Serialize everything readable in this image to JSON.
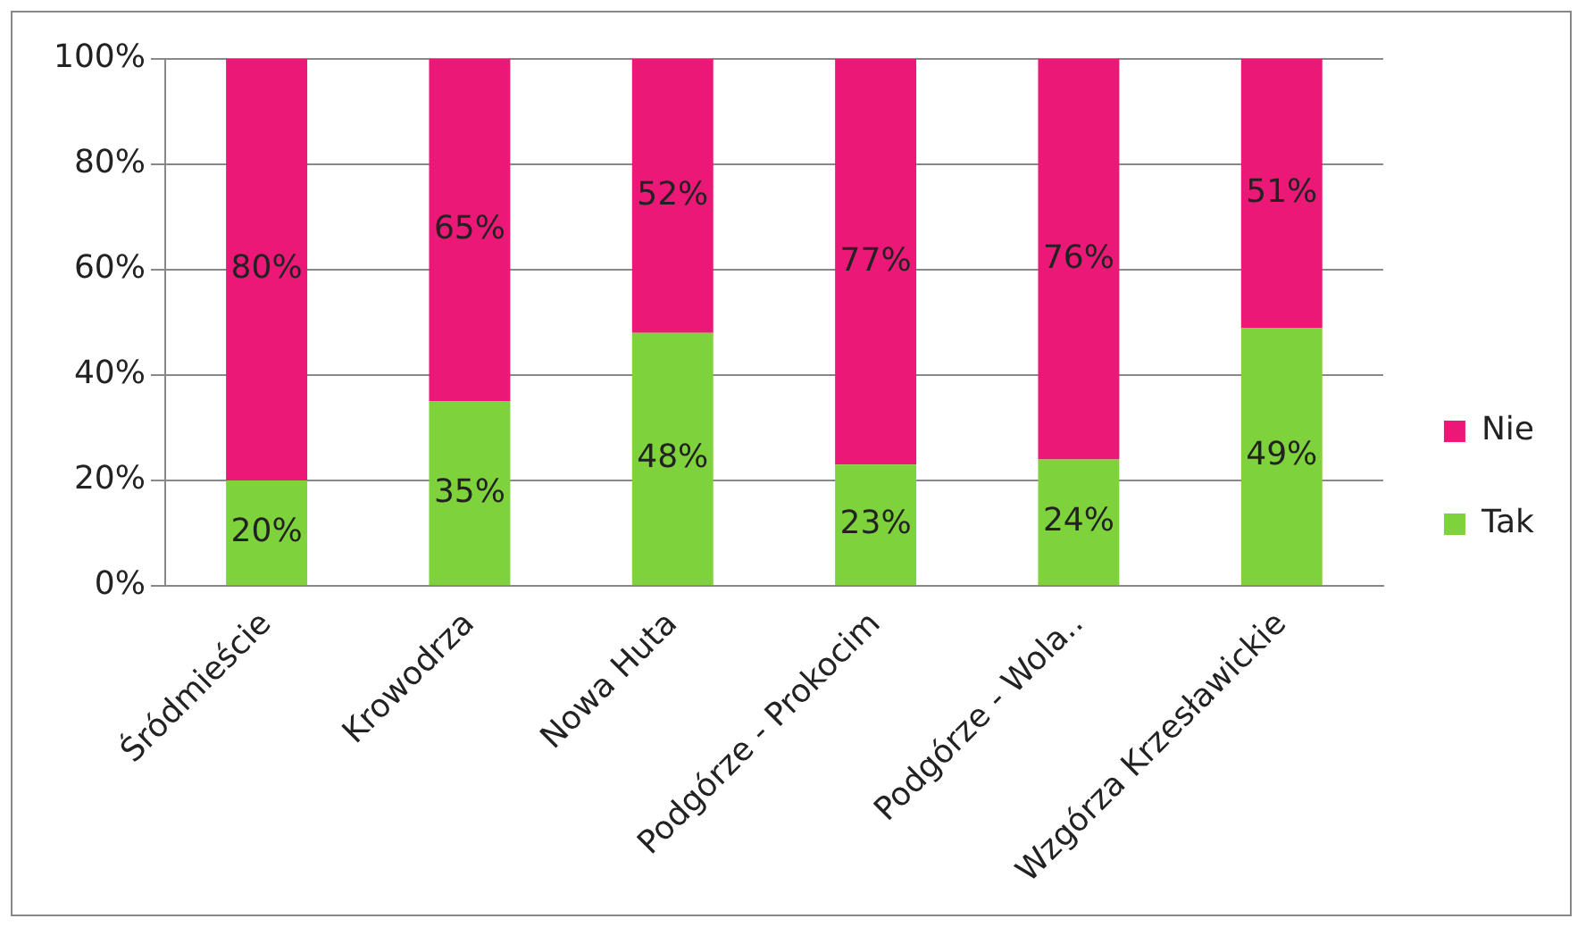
{
  "chart_data": {
    "type": "bar",
    "stacked": true,
    "categories": [
      "Śródmieście",
      "Krowodrza",
      "Nowa Huta",
      "Podgórze - Prokocim",
      "Podgórze - Wola..",
      "Wzgórza Krzesławickie"
    ],
    "series": [
      {
        "name": "Tak",
        "color": "#7ed23c",
        "values": [
          20,
          35,
          48,
          23,
          24,
          49
        ],
        "value_labels": [
          "20%",
          "35%",
          "48%",
          "23%",
          "24%",
          "49%"
        ]
      },
      {
        "name": "Nie",
        "color": "#ec1877",
        "values": [
          80,
          65,
          52,
          77,
          76,
          51
        ],
        "value_labels": [
          "80%",
          "65%",
          "52%",
          "77%",
          "76%",
          "51%"
        ]
      }
    ],
    "ylim": [
      0,
      100
    ],
    "yticks": [
      {
        "value": 0,
        "label": "0%"
      },
      {
        "value": 20,
        "label": "20%"
      },
      {
        "value": 40,
        "label": "40%"
      },
      {
        "value": 60,
        "label": "60%"
      },
      {
        "value": 80,
        "label": "80%"
      },
      {
        "value": 100,
        "label": "100%"
      }
    ],
    "grid": "y",
    "legend": "right"
  }
}
